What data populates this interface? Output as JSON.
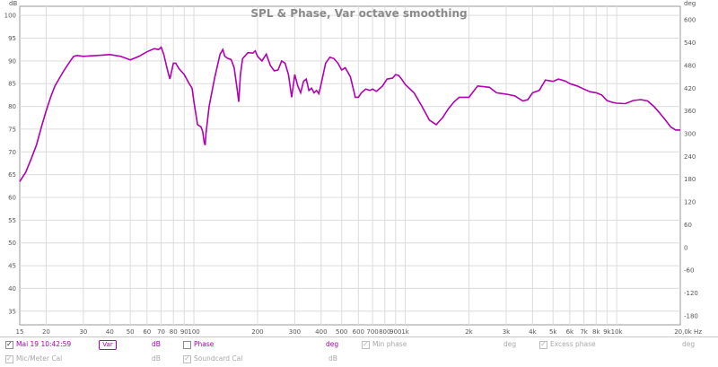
{
  "chart_data": {
    "type": "line",
    "title": "SPL & Phase, Var octave smoothing",
    "y_left_unit": "dB",
    "y_right_unit": "deg",
    "x_unit": "Hz",
    "ylim": [
      32,
      102
    ],
    "y_right_lim": [
      -204,
      636
    ],
    "xlim": [
      15,
      20000
    ],
    "x_scale": "log",
    "grid": true,
    "y_ticks": [
      "100",
      "95",
      "90",
      "85",
      "80",
      "75",
      "70",
      "65",
      "60",
      "55",
      "50",
      "45",
      "40",
      "35"
    ],
    "y_right_ticks": [
      "600",
      "540",
      "480",
      "420",
      "360",
      "300",
      "240",
      "180",
      "120",
      "60",
      "0",
      "-60",
      "-120",
      "-180"
    ],
    "x_ticks": [
      {
        "v": 15,
        "t": "15"
      },
      {
        "v": 20,
        "t": "20"
      },
      {
        "v": 30,
        "t": "30"
      },
      {
        "v": 40,
        "t": "40"
      },
      {
        "v": 50,
        "t": "50"
      },
      {
        "v": 60,
        "t": "60"
      },
      {
        "v": 70,
        "t": "70"
      },
      {
        "v": 80,
        "t": "80"
      },
      {
        "v": 90,
        "t": "90"
      },
      {
        "v": 100,
        "t": "100"
      },
      {
        "v": 200,
        "t": "200"
      },
      {
        "v": 300,
        "t": "300"
      },
      {
        "v": 400,
        "t": "400"
      },
      {
        "v": 500,
        "t": "500"
      },
      {
        "v": 600,
        "t": "600"
      },
      {
        "v": 700,
        "t": "700"
      },
      {
        "v": 800,
        "t": "800"
      },
      {
        "v": 900,
        "t": "900"
      },
      {
        "v": 1000,
        "t": "1k"
      },
      {
        "v": 2000,
        "t": "2k"
      },
      {
        "v": 3000,
        "t": "3k"
      },
      {
        "v": 4000,
        "t": "4k"
      },
      {
        "v": 5000,
        "t": "5k"
      },
      {
        "v": 6000,
        "t": "6k"
      },
      {
        "v": 7000,
        "t": "7k"
      },
      {
        "v": 8000,
        "t": "8k"
      },
      {
        "v": 9000,
        "t": "9k"
      },
      {
        "v": 10000,
        "t": "10k"
      },
      {
        "v": 20000,
        "t": "20,0k Hz"
      }
    ],
    "series": [
      {
        "name": "Var",
        "color": "#b000b0",
        "points": [
          [
            15,
            63.5
          ],
          [
            16,
            65.5
          ],
          [
            17,
            68.5
          ],
          [
            18,
            71.5
          ],
          [
            19,
            75.5
          ],
          [
            20,
            79
          ],
          [
            21,
            82
          ],
          [
            22,
            84.5
          ],
          [
            24,
            87.5
          ],
          [
            26,
            90
          ],
          [
            27,
            91
          ],
          [
            28,
            91.2
          ],
          [
            30,
            91
          ],
          [
            32,
            91.1
          ],
          [
            35,
            91.2
          ],
          [
            40,
            91.4
          ],
          [
            45,
            91
          ],
          [
            50,
            90.2
          ],
          [
            55,
            91
          ],
          [
            60,
            92
          ],
          [
            65,
            92.7
          ],
          [
            68,
            92.5
          ],
          [
            70,
            93
          ],
          [
            72,
            91.5
          ],
          [
            75,
            88
          ],
          [
            77,
            86
          ],
          [
            80,
            89.5
          ],
          [
            82,
            89.5
          ],
          [
            85,
            88.3
          ],
          [
            90,
            87
          ],
          [
            95,
            85
          ],
          [
            98,
            84
          ],
          [
            100,
            81
          ],
          [
            104,
            76
          ],
          [
            108,
            75.5
          ],
          [
            110,
            74.5
          ],
          [
            112,
            72
          ],
          [
            113,
            71.5
          ],
          [
            114,
            74
          ],
          [
            118,
            80
          ],
          [
            125,
            86
          ],
          [
            133,
            91.5
          ],
          [
            137,
            92.5
          ],
          [
            140,
            91
          ],
          [
            145,
            90.5
          ],
          [
            150,
            90.3
          ],
          [
            155,
            88.5
          ],
          [
            160,
            84
          ],
          [
            163,
            81
          ],
          [
            166,
            87
          ],
          [
            170,
            90.5
          ],
          [
            180,
            91.8
          ],
          [
            190,
            91.7
          ],
          [
            195,
            92.2
          ],
          [
            200,
            91
          ],
          [
            210,
            90
          ],
          [
            220,
            91.5
          ],
          [
            230,
            89
          ],
          [
            240,
            87.8
          ],
          [
            250,
            88
          ],
          [
            260,
            90
          ],
          [
            270,
            89.5
          ],
          [
            280,
            87
          ],
          [
            290,
            82
          ],
          [
            300,
            87
          ],
          [
            310,
            84.5
          ],
          [
            320,
            83
          ],
          [
            330,
            85.5
          ],
          [
            340,
            86
          ],
          [
            350,
            83.5
          ],
          [
            360,
            84
          ],
          [
            370,
            83
          ],
          [
            380,
            83.5
          ],
          [
            390,
            82.8
          ],
          [
            400,
            85
          ],
          [
            420,
            89.5
          ],
          [
            440,
            90.8
          ],
          [
            460,
            90.5
          ],
          [
            480,
            89.5
          ],
          [
            500,
            88
          ],
          [
            520,
            88.5
          ],
          [
            550,
            86.5
          ],
          [
            580,
            82
          ],
          [
            600,
            82
          ],
          [
            620,
            83
          ],
          [
            650,
            83.8
          ],
          [
            680,
            83.5
          ],
          [
            700,
            83.8
          ],
          [
            730,
            83.3
          ],
          [
            780,
            84.5
          ],
          [
            820,
            86
          ],
          [
            870,
            86.2
          ],
          [
            900,
            87
          ],
          [
            930,
            86.8
          ],
          [
            960,
            86
          ],
          [
            1000,
            84.8
          ],
          [
            1100,
            83
          ],
          [
            1200,
            80
          ],
          [
            1300,
            77
          ],
          [
            1400,
            76
          ],
          [
            1500,
            77.5
          ],
          [
            1600,
            79.5
          ],
          [
            1700,
            81
          ],
          [
            1800,
            82
          ],
          [
            2000,
            82
          ],
          [
            2200,
            84.5
          ],
          [
            2500,
            84.2
          ],
          [
            2700,
            83
          ],
          [
            3000,
            82.7
          ],
          [
            3300,
            82.3
          ],
          [
            3600,
            81.2
          ],
          [
            3800,
            81.5
          ],
          [
            4000,
            83
          ],
          [
            4300,
            83.5
          ],
          [
            4600,
            85.8
          ],
          [
            5000,
            85.5
          ],
          [
            5300,
            86
          ],
          [
            5700,
            85.6
          ],
          [
            6000,
            85
          ],
          [
            6500,
            84.5
          ],
          [
            7000,
            83.8
          ],
          [
            7500,
            83.2
          ],
          [
            8000,
            83
          ],
          [
            8500,
            82.5
          ],
          [
            9000,
            81.3
          ],
          [
            9500,
            80.9
          ],
          [
            10000,
            80.7
          ],
          [
            11000,
            80.6
          ],
          [
            12000,
            81.3
          ],
          [
            13000,
            81.5
          ],
          [
            14000,
            81.2
          ],
          [
            15000,
            80
          ],
          [
            16000,
            78.5
          ],
          [
            17000,
            77
          ],
          [
            18000,
            75.5
          ],
          [
            19000,
            74.8
          ],
          [
            20000,
            74.8
          ]
        ]
      }
    ]
  },
  "legend": {
    "row1": [
      {
        "kind": "measurement",
        "checked": true,
        "label": "Mai 19 10:42:59",
        "swatch": "Var",
        "unit": "dB"
      },
      {
        "kind": "phase",
        "checked": false,
        "label": "Phase",
        "unit": "deg"
      },
      {
        "kind": "min_phase",
        "checked": true,
        "label": "Min phase",
        "unit": "deg"
      },
      {
        "kind": "excess_phase",
        "checked": true,
        "label": "Excess phase",
        "unit": "deg"
      }
    ],
    "row2": [
      {
        "kind": "mic_cal",
        "checked": true,
        "label": "Mic/Meter Cal",
        "unit": "dB"
      },
      {
        "kind": "soundcard_cal",
        "checked": true,
        "label": "Soundcard Cal",
        "unit": "dB"
      }
    ]
  }
}
